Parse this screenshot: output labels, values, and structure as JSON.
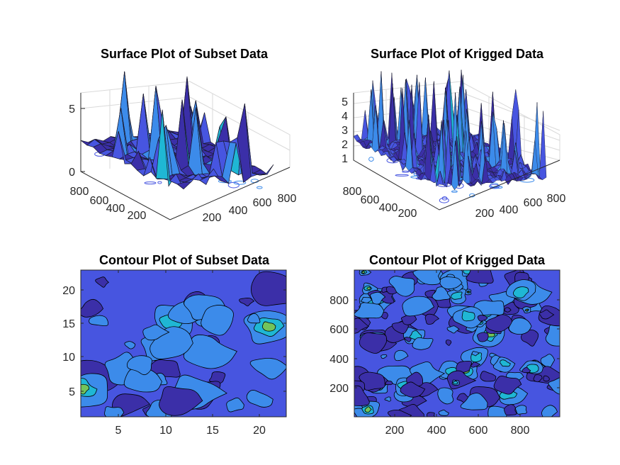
{
  "chart_data": [
    {
      "type": "surface",
      "title": "Surface Plot of Subset Data",
      "x_ticks": [
        "200",
        "400",
        "600",
        "800"
      ],
      "y_ticks": [
        "200",
        "400",
        "600",
        "800"
      ],
      "z_ticks": [
        "0",
        "5"
      ],
      "zlim": [
        0,
        6.5
      ],
      "grid": true,
      "colors": [
        "#3b2fa8",
        "#4755e0",
        "#3c8bea",
        "#1fb7d4",
        "#73c45a",
        "#ffe11a"
      ]
    },
    {
      "type": "surface",
      "title": "Surface Plot of Krigged Data",
      "x_ticks": [
        "200",
        "400",
        "600",
        "800"
      ],
      "y_ticks": [
        "200",
        "400",
        "600",
        "800"
      ],
      "z_ticks": [
        "1",
        "2",
        "3",
        "4",
        "5"
      ],
      "zlim": [
        0,
        6
      ],
      "grid": true,
      "colors": [
        "#3b2fa8",
        "#4755e0",
        "#3c8bea",
        "#1fb7d4",
        "#73c45a",
        "#ffe11a"
      ]
    },
    {
      "type": "contour",
      "title": "Contour Plot of Subset Data",
      "x_ticks": [
        "5",
        "10",
        "15",
        "20"
      ],
      "y_ticks": [
        "5",
        "10",
        "15",
        "20"
      ],
      "xlim": [
        1,
        23
      ],
      "ylim": [
        1,
        23
      ],
      "colors": [
        "#3b2fa8",
        "#4755e0",
        "#3c8bea",
        "#1fb7d4",
        "#73c45a",
        "#ffe11a"
      ]
    },
    {
      "type": "contour",
      "title": "Contour Plot of Krigged Data",
      "x_ticks": [
        "200",
        "400",
        "600",
        "800"
      ],
      "y_ticks": [
        "200",
        "400",
        "600",
        "800"
      ],
      "xlim": [
        0,
        990
      ],
      "ylim": [
        0,
        970
      ],
      "colors": [
        "#3b2fa8",
        "#4755e0",
        "#3c8bea",
        "#1fb7d4",
        "#73c45a",
        "#ffe11a"
      ]
    }
  ]
}
